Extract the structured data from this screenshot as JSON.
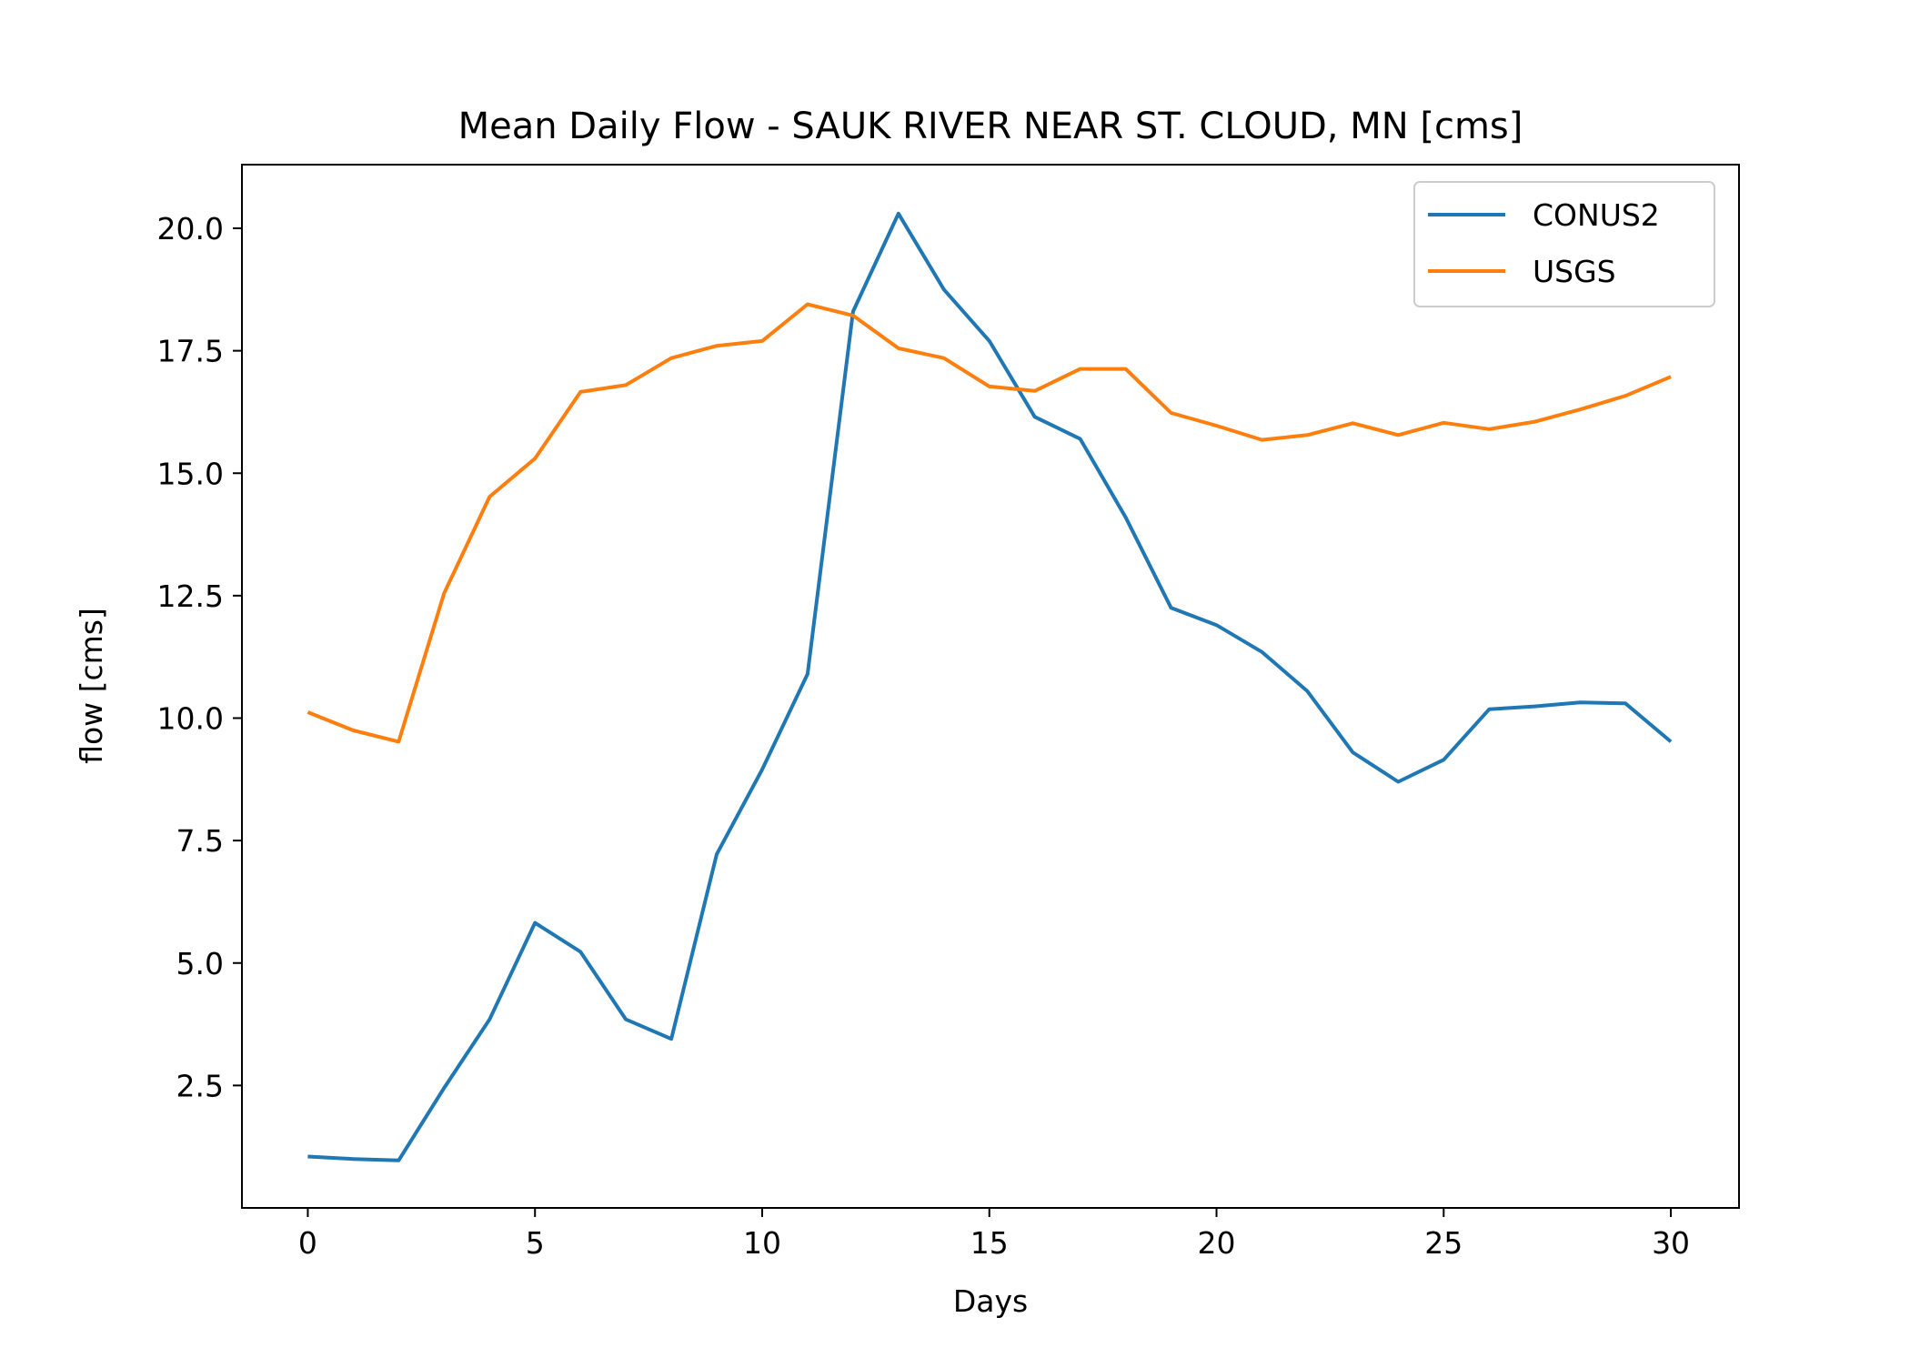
{
  "chart_data": {
    "type": "line",
    "title": "Mean Daily Flow - SAUK RIVER NEAR ST. CLOUD, MN [cms]",
    "xlabel": "Days",
    "ylabel": "flow [cms]",
    "xlim": [
      -1.45,
      31.5
    ],
    "ylim": [
      0.0,
      21.3
    ],
    "xticks": [
      0,
      5,
      10,
      15,
      20,
      25,
      30
    ],
    "xtick_labels": [
      "0",
      "5",
      "10",
      "15",
      "20",
      "25",
      "30"
    ],
    "yticks": [
      2.5,
      5.0,
      7.5,
      10.0,
      12.5,
      15.0,
      17.5,
      20.0
    ],
    "ytick_labels": [
      "2.5",
      "5.0",
      "7.5",
      "10.0",
      "12.5",
      "15.0",
      "17.5",
      "20.0"
    ],
    "grid": false,
    "legend_position": "top-right",
    "x": [
      0,
      1,
      2,
      3,
      4,
      5,
      6,
      7,
      8,
      9,
      10,
      11,
      12,
      13,
      14,
      15,
      16,
      17,
      18,
      19,
      20,
      21,
      22,
      23,
      24,
      25,
      26,
      27,
      28,
      29,
      30
    ],
    "series": [
      {
        "name": "CONUS2",
        "color": "#1f77b4",
        "values": [
          1.05,
          1.0,
          0.97,
          2.45,
          3.85,
          5.82,
          5.23,
          3.85,
          3.45,
          7.22,
          8.95,
          10.9,
          18.3,
          20.3,
          18.75,
          17.7,
          16.15,
          15.7,
          14.1,
          12.25,
          11.9,
          11.35,
          10.55,
          9.3,
          8.7,
          9.15,
          10.18,
          10.24,
          10.32,
          10.3,
          9.52
        ]
      },
      {
        "name": "USGS",
        "color": "#ff7f0e",
        "values": [
          10.12,
          9.75,
          9.52,
          12.55,
          14.52,
          15.3,
          16.66,
          16.8,
          17.35,
          17.6,
          17.7,
          18.45,
          18.22,
          17.55,
          17.35,
          16.77,
          16.68,
          17.13,
          17.13,
          16.23,
          15.97,
          15.68,
          15.78,
          16.02,
          15.78,
          16.03,
          15.9,
          16.05,
          16.3,
          16.58,
          16.97
        ]
      }
    ]
  }
}
